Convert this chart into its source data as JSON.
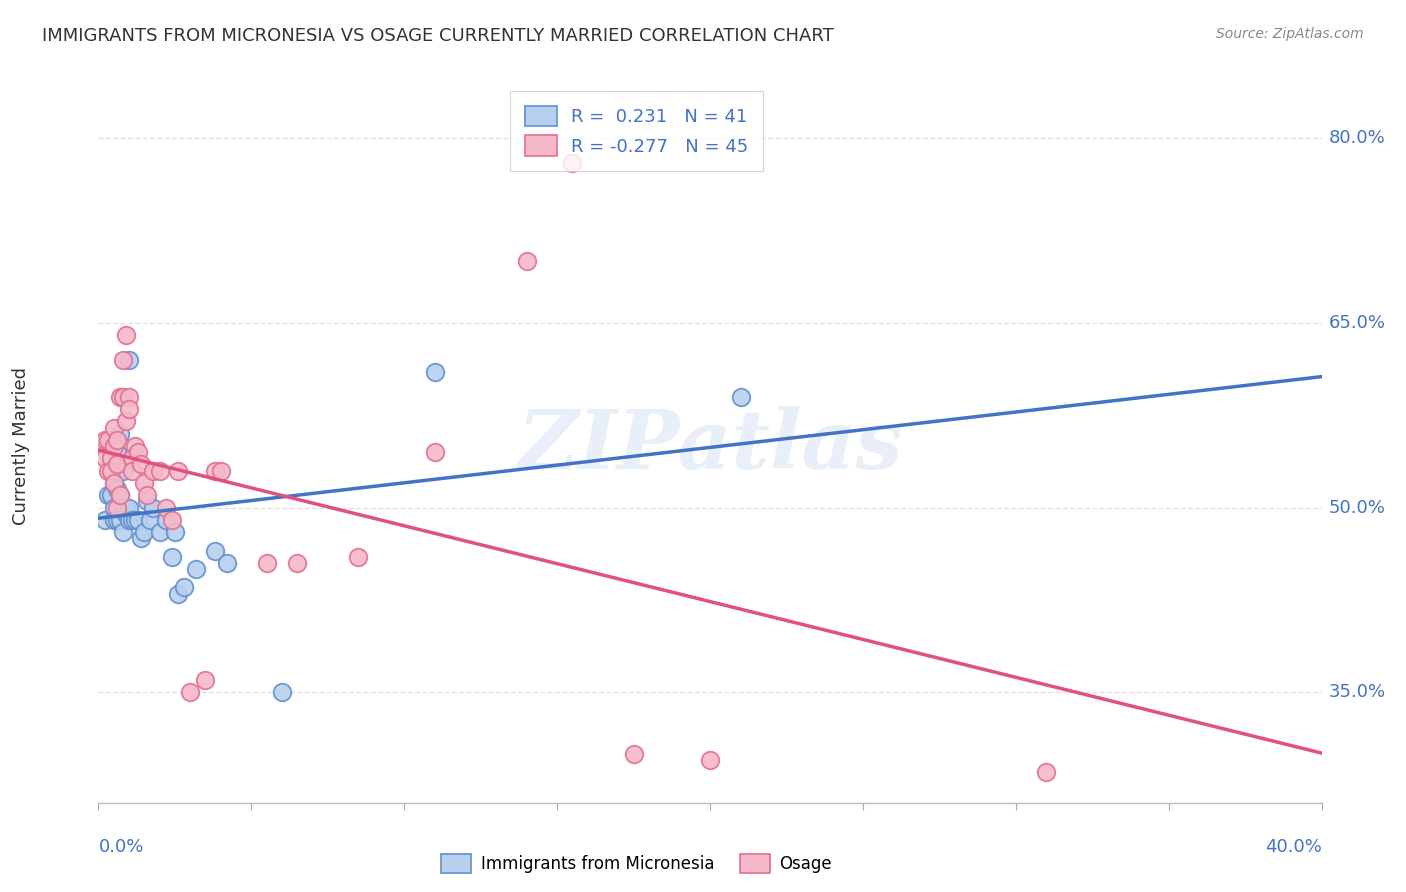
{
  "title": "IMMIGRANTS FROM MICRONESIA VS OSAGE CURRENTLY MARRIED CORRELATION CHART",
  "source": "Source: ZipAtlas.com",
  "ylabel": "Currently Married",
  "ylabel_right_labels": [
    "80.0%",
    "65.0%",
    "50.0%",
    "35.0%"
  ],
  "ylabel_right_values": [
    0.8,
    0.65,
    0.5,
    0.35
  ],
  "watermark": "ZIPatlas",
  "legend_blue_label": "R =  0.231   N = 41",
  "legend_pink_label": "R = -0.277   N = 45",
  "legend_bottom_blue": "Immigrants from Micronesia",
  "legend_bottom_pink": "Osage",
  "xlim": [
    0.0,
    0.4
  ],
  "ylim": [
    0.26,
    0.84
  ],
  "blue_line_color": "#4472c4",
  "pink_line_color": "#e05080",
  "blue_dot_face": "#b8d0ee",
  "blue_dot_edge": "#6090d0",
  "pink_dot_face": "#f5b8c8",
  "pink_dot_edge": "#e07090",
  "blue_scatter_x": [
    0.002,
    0.003,
    0.004,
    0.004,
    0.005,
    0.005,
    0.005,
    0.006,
    0.006,
    0.006,
    0.007,
    0.007,
    0.007,
    0.008,
    0.008,
    0.008,
    0.009,
    0.009,
    0.01,
    0.01,
    0.01,
    0.011,
    0.012,
    0.013,
    0.014,
    0.015,
    0.016,
    0.017,
    0.018,
    0.02,
    0.022,
    0.024,
    0.025,
    0.026,
    0.028,
    0.032,
    0.038,
    0.042,
    0.06,
    0.11,
    0.21
  ],
  "blue_scatter_y": [
    0.49,
    0.51,
    0.54,
    0.51,
    0.5,
    0.49,
    0.52,
    0.545,
    0.515,
    0.49,
    0.56,
    0.51,
    0.49,
    0.53,
    0.5,
    0.48,
    0.495,
    0.5,
    0.49,
    0.5,
    0.62,
    0.49,
    0.49,
    0.49,
    0.475,
    0.48,
    0.505,
    0.49,
    0.5,
    0.48,
    0.49,
    0.46,
    0.48,
    0.43,
    0.435,
    0.45,
    0.465,
    0.455,
    0.35,
    0.61,
    0.59
  ],
  "pink_scatter_x": [
    0.002,
    0.002,
    0.003,
    0.003,
    0.004,
    0.004,
    0.005,
    0.005,
    0.005,
    0.006,
    0.006,
    0.006,
    0.007,
    0.007,
    0.008,
    0.008,
    0.009,
    0.009,
    0.01,
    0.01,
    0.011,
    0.011,
    0.012,
    0.013,
    0.014,
    0.015,
    0.016,
    0.018,
    0.02,
    0.022,
    0.024,
    0.026,
    0.03,
    0.035,
    0.038,
    0.04,
    0.055,
    0.065,
    0.085,
    0.11,
    0.14,
    0.155,
    0.175,
    0.2,
    0.31
  ],
  "pink_scatter_y": [
    0.555,
    0.54,
    0.555,
    0.53,
    0.54,
    0.53,
    0.565,
    0.55,
    0.52,
    0.555,
    0.535,
    0.5,
    0.59,
    0.51,
    0.62,
    0.59,
    0.64,
    0.57,
    0.59,
    0.58,
    0.54,
    0.53,
    0.55,
    0.545,
    0.535,
    0.52,
    0.51,
    0.53,
    0.53,
    0.5,
    0.49,
    0.53,
    0.35,
    0.36,
    0.53,
    0.53,
    0.455,
    0.455,
    0.46,
    0.545,
    0.7,
    0.78,
    0.3,
    0.295,
    0.285
  ],
  "grid_color": "#e0e0e0",
  "background_color": "#ffffff",
  "title_color": "#333333",
  "source_color": "#888888",
  "axis_label_color": "#4472c4"
}
